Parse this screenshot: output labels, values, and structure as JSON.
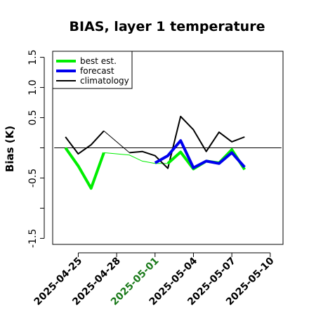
{
  "chart_data": {
    "type": "line",
    "title": "BIAS, layer 1 temperature",
    "xlabel": "",
    "ylabel": "Bias (K)",
    "ylim": [
      -1.6,
      1.6
    ],
    "xlim": [
      "2025-04-23",
      "2025-05-11"
    ],
    "yticks": [
      -1.5,
      -1.0,
      -0.5,
      0.0,
      0.5,
      1.0,
      1.5
    ],
    "ytick_labels": [
      "-1.5",
      "",
      "-0.5",
      "",
      "0.5",
      "1.0",
      "1.5"
    ],
    "xticks": [
      "2025-04-25",
      "2025-04-28",
      "2025-05-01",
      "2025-05-04",
      "2025-05-07",
      "2025-05-10"
    ],
    "highlight_xtick": "2025-05-01",
    "highlight_color": "#1a7a1a",
    "reference_line": 0.0,
    "legend_position": "top-left",
    "series": [
      {
        "name": "best est.",
        "color": "#00ee00",
        "line_width": 4,
        "x": [
          "2025-04-24",
          "2025-04-25",
          "2025-04-26",
          "2025-04-27",
          "2025-05-02",
          "2025-05-03",
          "2025-05-04",
          "2025-05-05",
          "2025-05-06",
          "2025-05-07",
          "2025-05-08"
        ],
        "values": [
          0.0,
          -0.3,
          -0.67,
          -0.08,
          -0.26,
          -0.07,
          -0.35,
          -0.22,
          -0.25,
          -0.03,
          -0.36
        ],
        "bridge": {
          "x": [
            "2025-04-27",
            "2025-04-29",
            "2025-04-30",
            "2025-05-01",
            "2025-05-02"
          ],
          "values": [
            -0.08,
            -0.12,
            -0.22,
            -0.26,
            -0.26
          ]
        }
      },
      {
        "name": "forecast",
        "color": "#0000ee",
        "line_width": 4,
        "x": [
          "2025-05-01",
          "2025-05-02",
          "2025-05-03",
          "2025-05-04",
          "2025-05-05",
          "2025-05-06",
          "2025-05-07",
          "2025-05-08"
        ],
        "values": [
          -0.25,
          -0.13,
          0.12,
          -0.33,
          -0.22,
          -0.26,
          -0.08,
          -0.32
        ]
      },
      {
        "name": "climatology",
        "color": "#000000",
        "line_width": 2,
        "x": [
          "2025-04-24",
          "2025-04-25",
          "2025-04-26",
          "2025-04-27",
          "2025-04-29",
          "2025-04-30",
          "2025-05-01",
          "2025-05-02",
          "2025-05-03",
          "2025-05-04",
          "2025-05-05",
          "2025-05-06",
          "2025-05-07",
          "2025-05-08"
        ],
        "values": [
          0.18,
          -0.1,
          0.05,
          0.28,
          -0.08,
          -0.06,
          -0.13,
          -0.34,
          0.52,
          0.3,
          -0.06,
          0.26,
          0.1,
          0.18
        ],
        "thin_segment": {
          "from": "2025-04-27",
          "to": "2025-04-29"
        }
      }
    ]
  }
}
